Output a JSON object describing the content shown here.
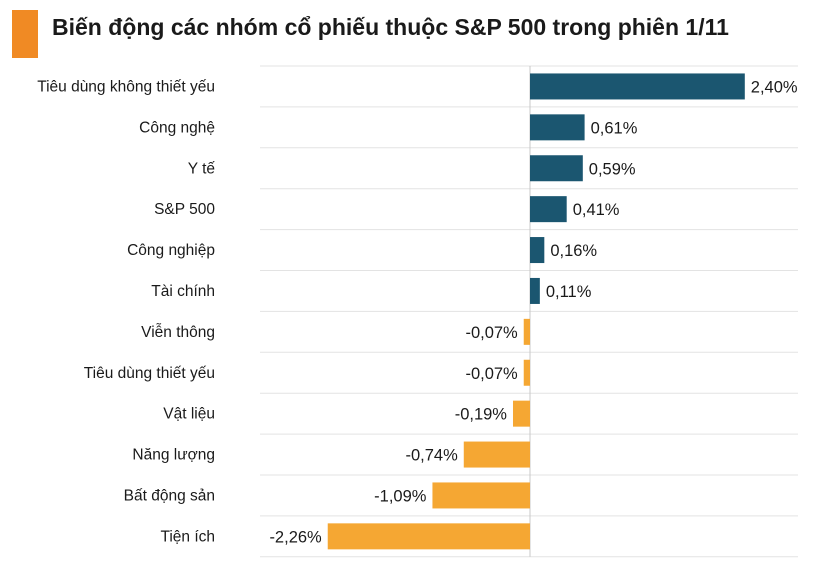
{
  "title": "Biến động các nhóm cổ phiếu thuộc S&P 500 trong phiên 1/11",
  "colors": {
    "accent": "#F08A24",
    "positive": "#1B5670",
    "negative": "#F5A733",
    "grid": "#E3E3E3",
    "zero_line": "#C8C8C8"
  },
  "chart_data": {
    "type": "bar",
    "orientation": "horizontal",
    "title": "Biến động các nhóm cổ phiếu thuộc S&P 500 trong phiên 1/11",
    "categories": [
      "Tiêu dùng không thiết yếu",
      "Công nghệ",
      "Y tế",
      "S&P 500",
      "Công nghiệp",
      "Tài chính",
      "Viễn thông",
      "Tiêu dùng thiết yếu",
      "Vật liệu",
      "Năng lượng",
      "Bất động sản",
      "Tiện ích"
    ],
    "values": [
      2.4,
      0.61,
      0.59,
      0.41,
      0.16,
      0.11,
      -0.07,
      -0.07,
      -0.19,
      -0.74,
      -1.09,
      -2.26
    ],
    "value_labels": [
      "2,40%",
      "0,61%",
      "0,59%",
      "0,41%",
      "0,16%",
      "0,11%",
      "-0,07%",
      "-0,07%",
      "-0,19%",
      "-0,74%",
      "-1,09%",
      "-2,26%"
    ],
    "unit": "%",
    "grid": true
  }
}
